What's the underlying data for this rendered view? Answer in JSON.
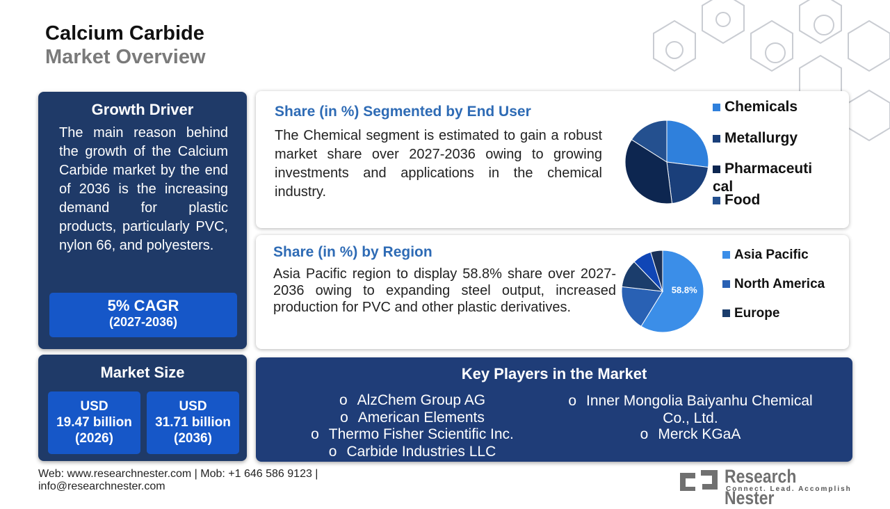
{
  "header": {
    "title": "Calcium Carbide",
    "subtitle": "Market Overview"
  },
  "growth_driver": {
    "title": "Growth Driver",
    "text": "The main reason behind the growth of the Calcium Carbide market by the end of 2036 is the increasing demand for plastic products, particularly PVC, nylon 66, and polyesters.",
    "cagr": "5% CAGR",
    "period": "(2027-2036)"
  },
  "market_size": {
    "title": "Market Size",
    "items": [
      [
        "USD",
        "19.47 billion",
        "(2026)"
      ],
      [
        "USD",
        "31.71 billion",
        "(2036)"
      ]
    ]
  },
  "end_user": {
    "title": "Share (in %) Segmented by End User",
    "text": "The Chemical segment is estimated to gain a robust market share over 2027-2036 owing to growing investments and applications in the chemical industry.",
    "chart": {
      "type": "pie",
      "categories": [
        "Chemicals",
        "Metallurgy",
        "Pharmaceutical",
        "Food"
      ],
      "values": [
        27,
        21,
        36,
        16
      ],
      "colors": [
        "#2f80dc",
        "#1a3f7a",
        "#0d2650",
        "#24508f"
      ]
    }
  },
  "region": {
    "title": "Share (in %) by Region",
    "text": "Asia Pacific region to display 58.8% share over 2027-2036 owing to expanding steel output, increased production for PVC and other plastic derivatives.",
    "chart": {
      "type": "pie",
      "categories": [
        "Asia Pacific",
        "North America",
        "Europe",
        null,
        null
      ],
      "values": [
        58.8,
        18,
        11,
        7.5,
        4.7
      ],
      "value_labels": [
        "58.8%",
        null,
        null,
        null,
        null
      ],
      "colors": [
        "#3b8ee8",
        "#2961b4",
        "#1b3d6c",
        "#1046b6",
        "#1a3158"
      ]
    }
  },
  "key_players": {
    "title": "Key Players in the Market",
    "left": [
      "AlzChem Group AG",
      "American Elements",
      "Thermo Fisher Scientific Inc.",
      "Carbide Industries LLC"
    ],
    "right": [
      "Inner Mongolia Baiyanhu Chemical Co., Ltd.",
      "Merck KGaA"
    ]
  },
  "footer": {
    "line1": "Web: www.researchnester.com | Mob: +1 646 586 9123 |",
    "line2": "info@researchnester.com"
  },
  "logo": {
    "name": "Research Nester",
    "tagline": "Connect. Lead. Accomplish"
  }
}
